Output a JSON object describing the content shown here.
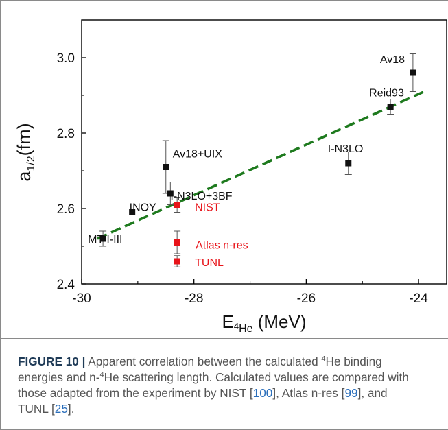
{
  "chart_data": {
    "type": "scatter",
    "xlabel_main": "E",
    "xlabel_sub_sup": "4",
    "xlabel_sub": "He",
    "xlabel_unit": " (MeV)",
    "ylabel_main": "a",
    "ylabel_sub": "1/2",
    "ylabel_unit": "(fm)",
    "xlim": [
      -30,
      -23.5
    ],
    "ylim": [
      2.4,
      3.1
    ],
    "xticks": [
      -30,
      -28,
      -26,
      -24
    ],
    "yticks": [
      2.4,
      2.6,
      2.8,
      3.0
    ],
    "xtick_labels": [
      "-30",
      "-28",
      "-26",
      "-24"
    ],
    "ytick_labels": [
      "2.4",
      "2.6",
      "2.8",
      "3.0"
    ],
    "series": [
      {
        "color": "#111111",
        "points": [
          {
            "label": "Av18",
            "x": -24.1,
            "y": 2.96,
            "err": 0.05
          },
          {
            "label": "Reid93",
            "x": -24.5,
            "y": 2.87,
            "err": 0.02
          },
          {
            "label": "I-N3LO",
            "x": -25.25,
            "y": 2.72,
            "err": 0.03
          },
          {
            "label": "Av18+UIX",
            "x": -28.5,
            "y": 2.71,
            "err": 0.07
          },
          {
            "label": "I-N3LO+3BF",
            "x": -28.42,
            "y": 2.64,
            "err": 0.03
          },
          {
            "label": "INOY",
            "x": -29.1,
            "y": 2.59,
            "err": 0.0
          },
          {
            "label": "MT I-III",
            "x": -29.62,
            "y": 2.52,
            "err": 0.02
          }
        ]
      },
      {
        "color": "#e8141a",
        "points": [
          {
            "label": "NIST",
            "x": -28.3,
            "y": 2.61,
            "err": 0.02
          },
          {
            "label": "Atlas n-res",
            "x": -28.3,
            "y": 2.51,
            "err": 0.03
          },
          {
            "label": "TUNL",
            "x": -28.3,
            "y": 2.46,
            "err": 0.015
          }
        ]
      }
    ],
    "fit_line": {
      "x": [
        -29.72,
        -23.9
      ],
      "y": [
        2.52,
        2.91
      ],
      "color": "#1e7a1e"
    }
  },
  "caption": {
    "fig_label": "FIGURE 10 |",
    "lines": [
      [
        {
          "t": " Apparent correlation between the calculated "
        },
        {
          "t": "4",
          "sup": true
        },
        {
          "t": "He binding"
        }
      ],
      [
        {
          "t": "energies and n-"
        },
        {
          "t": "4",
          "sup": true
        },
        {
          "t": "He scattering length. Calculated values are compared with"
        }
      ],
      [
        {
          "t": "those adapted from the experiment by NIST ["
        },
        {
          "t": "100",
          "ref": true
        },
        {
          "t": "], Atlas n-res ["
        },
        {
          "t": "99",
          "ref": true
        },
        {
          "t": "], and"
        }
      ],
      [
        {
          "t": "TUNL ["
        },
        {
          "t": "25",
          "ref": true
        },
        {
          "t": "]."
        }
      ]
    ]
  }
}
